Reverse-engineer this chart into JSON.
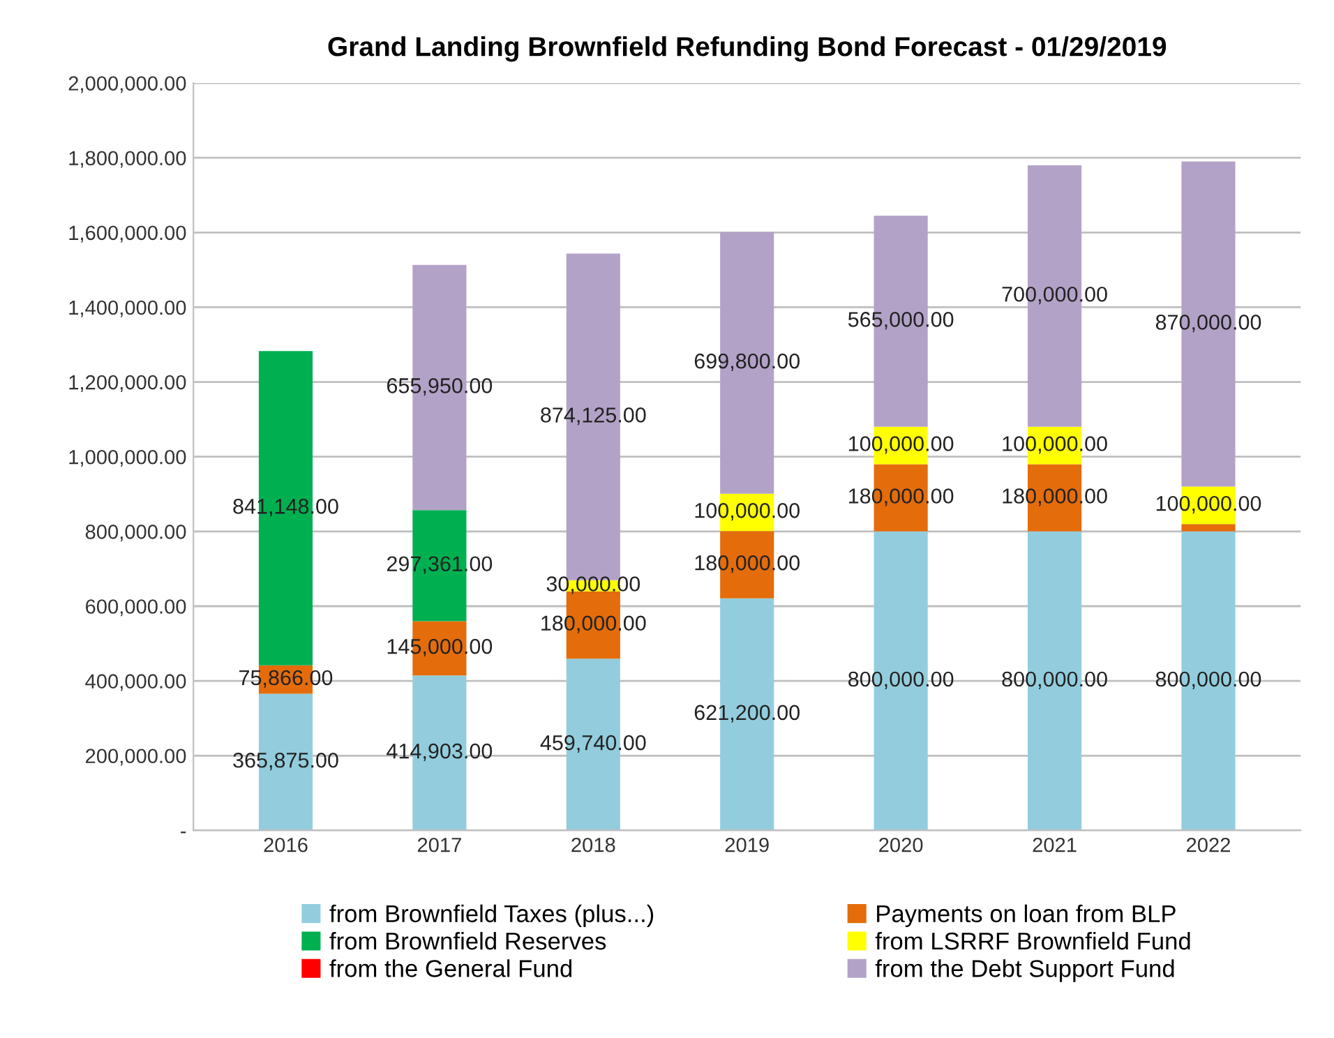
{
  "chart_data": {
    "type": "bar",
    "stacked": true,
    "title": "Grand Landing Brownfield Refunding Bond Forecast - 01/29/2019",
    "categories": [
      "2016",
      "2017",
      "2018",
      "2019",
      "2020",
      "2021",
      "2022"
    ],
    "series": [
      {
        "name": "from Brownfield Taxes (plus...)",
        "color": "#93cddd",
        "values": [
          365875,
          414903,
          459740,
          621200,
          800000,
          800000,
          800000
        ],
        "value_labels": [
          "365,875.00",
          "414,903.00",
          "459,740.00",
          "621,200.00",
          "800,000.00",
          "800,000.00",
          "800,000.00"
        ]
      },
      {
        "name": "Payments on loan from BLP",
        "color": "#e46c0a",
        "values": [
          75866,
          145000,
          180000,
          180000,
          180000,
          180000,
          20000
        ],
        "value_labels": [
          "75,866.00",
          "145,000.00",
          "180,000.00",
          "180,000.00",
          "180,000.00",
          "180,000.00",
          null
        ]
      },
      {
        "name": "from Brownfield Reserves",
        "color": "#00b050",
        "values": [
          841148,
          297361,
          null,
          null,
          null,
          null,
          null
        ],
        "value_labels": [
          "841,148.00",
          "297,361.00",
          null,
          null,
          null,
          null,
          null
        ]
      },
      {
        "name": "from LSRRF Brownfield Fund",
        "color": "#ffff00",
        "values": [
          null,
          null,
          30000,
          100000,
          100000,
          100000,
          100000
        ],
        "value_labels": [
          null,
          null,
          "30,000.00",
          "100,000.00",
          "100,000.00",
          "100,000.00",
          "100,000.00"
        ]
      },
      {
        "name": "from the General Fund",
        "color": "#ff0000",
        "values": [
          null,
          null,
          null,
          null,
          null,
          null,
          null
        ]
      },
      {
        "name": "from the Debt Support Fund",
        "color": "#b3a2c7",
        "values": [
          null,
          655950,
          874125,
          699800,
          565000,
          700000,
          870000
        ],
        "value_labels": [
          null,
          "655,950.00",
          "874,125.00",
          "699,800.00",
          "565,000.00",
          "700,000.00",
          "870,000.00"
        ]
      }
    ],
    "ylim": [
      0,
      2000000
    ],
    "yticks": [
      {
        "value": 0,
        "label": "-"
      },
      {
        "value": 200000,
        "label": "200,000.00"
      },
      {
        "value": 400000,
        "label": "400,000.00"
      },
      {
        "value": 600000,
        "label": "600,000.00"
      },
      {
        "value": 800000,
        "label": "800,000.00"
      },
      {
        "value": 1000000,
        "label": "1,000,000.00"
      },
      {
        "value": 1200000,
        "label": "1,200,000.00"
      },
      {
        "value": 1400000,
        "label": "1,400,000.00"
      },
      {
        "value": 1600000,
        "label": "1,600,000.00"
      },
      {
        "value": 1800000,
        "label": "1,800,000.00"
      },
      {
        "value": 2000000,
        "label": "2,000,000.00"
      }
    ],
    "grid": "y",
    "legend": "bottom"
  }
}
